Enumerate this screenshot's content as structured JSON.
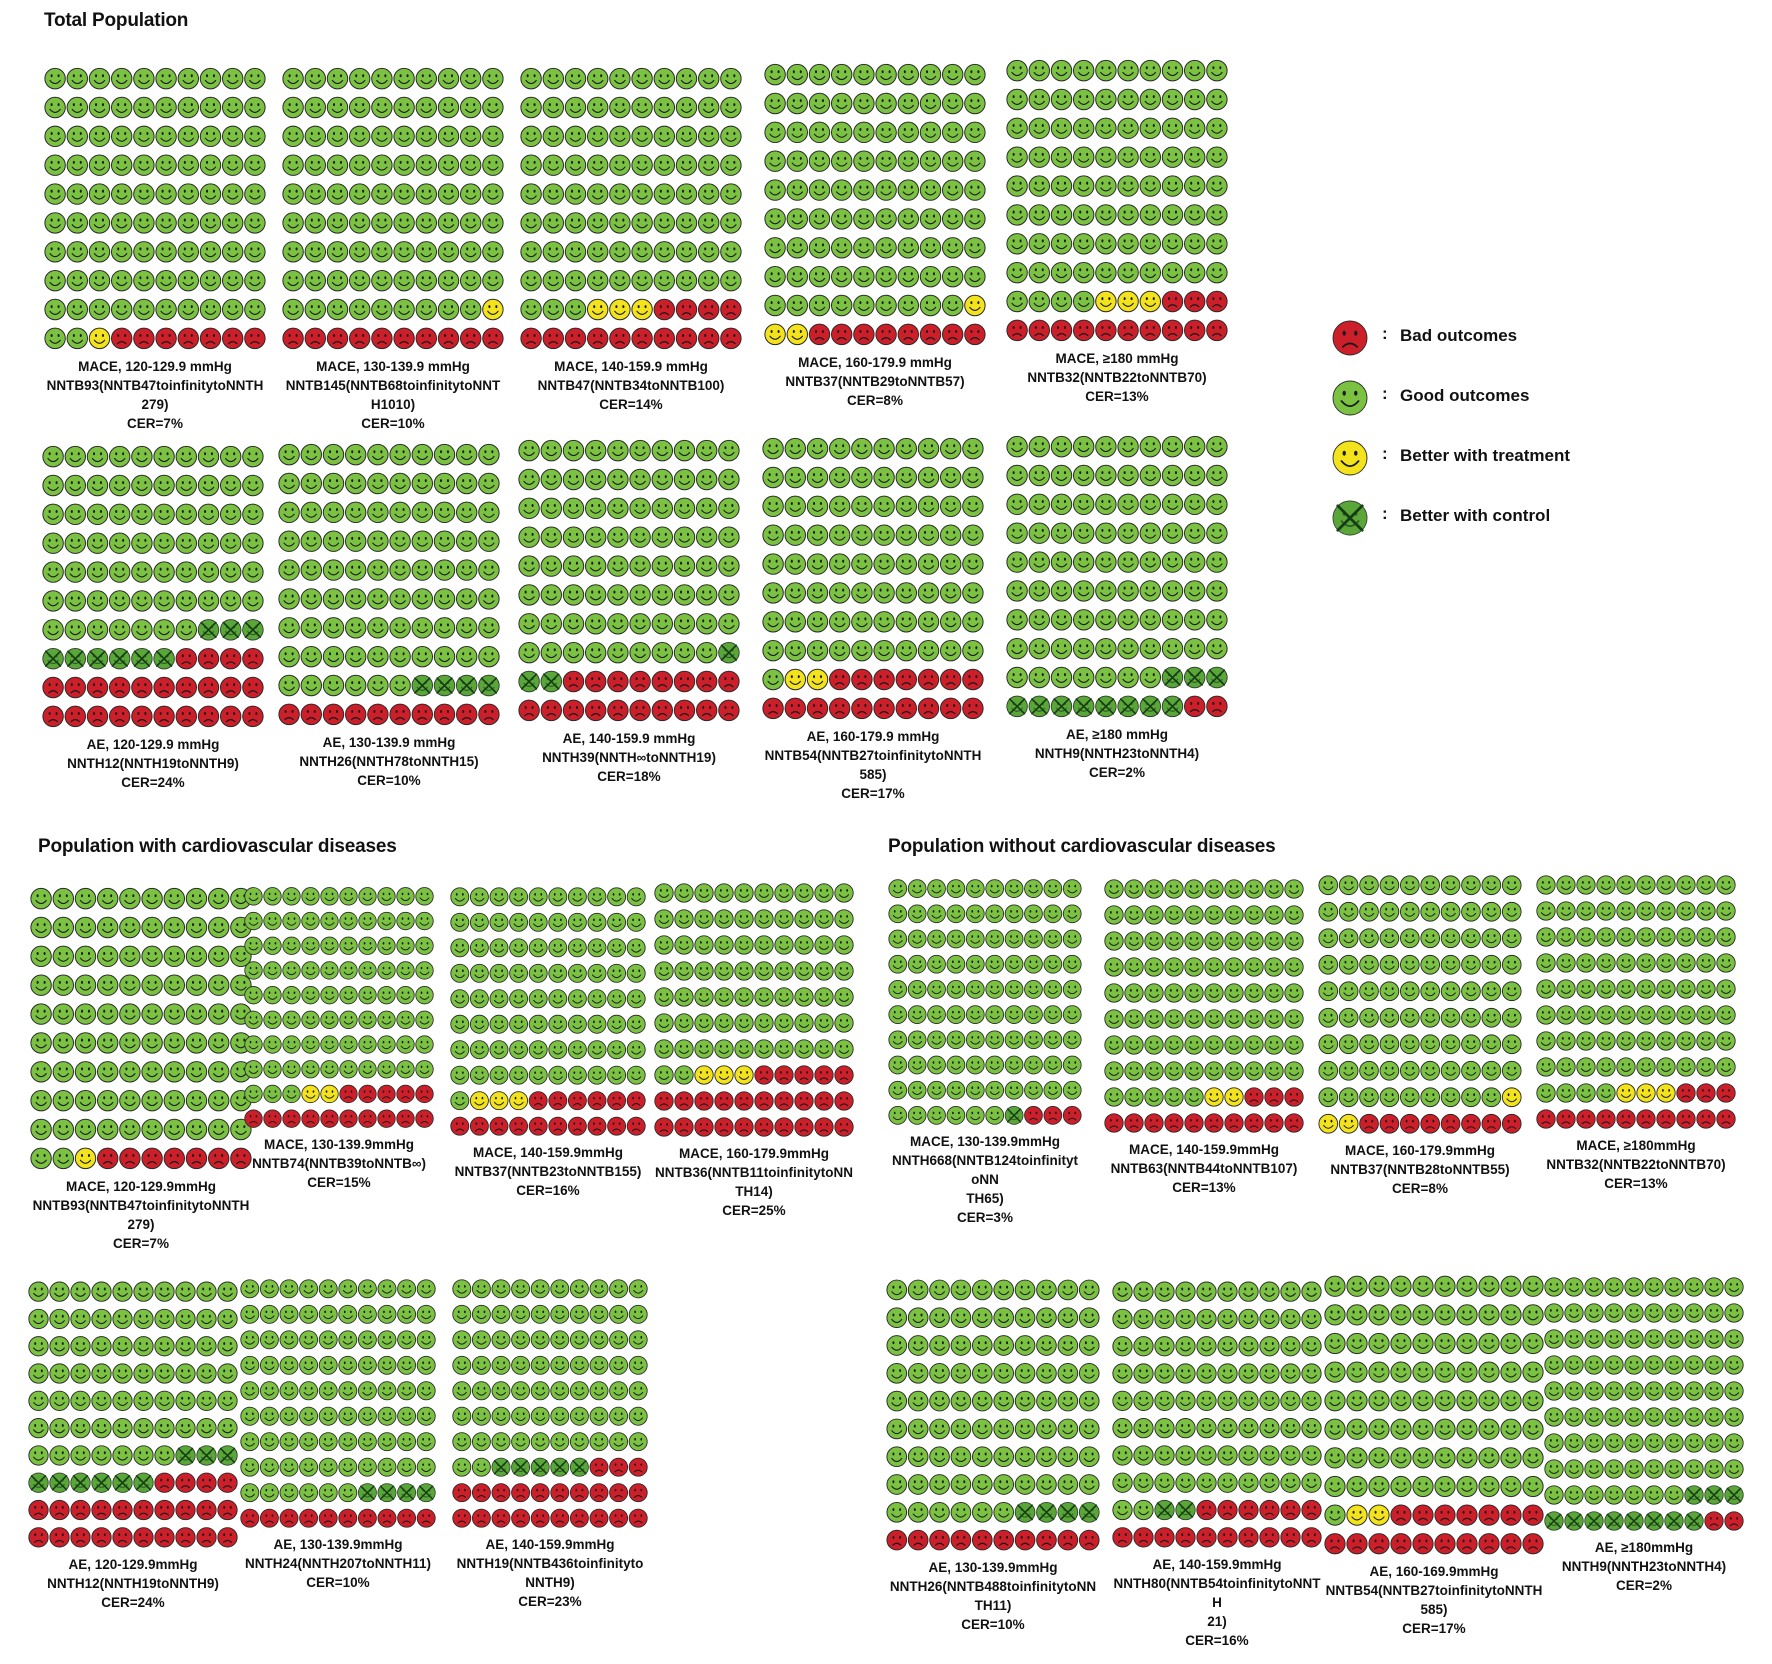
{
  "colors": {
    "bad": "#cc1f2a",
    "good": "#7cc242",
    "better_treatment": "#f3e31c",
    "better_control": "#3f8f32"
  },
  "sections": {
    "total": "Total Population",
    "with_cvd": "Population with cardiovascular diseases",
    "without_cvd": "Population without cardiovascular diseases"
  },
  "legend": [
    {
      "icon": "bad",
      "colon": ":",
      "label": "Bad outcomes"
    },
    {
      "icon": "good",
      "colon": ":",
      "label": "Good outcomes"
    },
    {
      "icon": "better_treatment",
      "colon": ":",
      "label": "Better with treatment"
    },
    {
      "icon": "better_control",
      "colon": ":",
      "label": "Better with control"
    }
  ],
  "chart_data": [
    {
      "type": "icon-array",
      "group": "Total Population",
      "caption": [
        "MACE, 120-129.9 mmHg",
        "NNTB93(NNTB47toinfinitytoNNTH",
        "279)",
        "CER=7%"
      ],
      "counts": {
        "good": 92,
        "better_treatment": 1,
        "better_control": 0,
        "bad": 7
      }
    },
    {
      "type": "icon-array",
      "group": "Total Population",
      "caption": [
        "MACE, 130-139.9 mmHg",
        "NNTB145(NNTB68toinfinitytoNNTH1010)",
        "CER=10%"
      ],
      "counts": {
        "good": 89,
        "better_treatment": 1,
        "better_control": 0,
        "bad": 10
      }
    },
    {
      "type": "icon-array",
      "group": "Total Population",
      "caption": [
        "MACE, 140-159.9 mmHg",
        "NNTB47(NNTB34toNNTB100)",
        "CER=14%"
      ],
      "counts": {
        "good": 83,
        "better_treatment": 3,
        "better_control": 0,
        "bad": 14
      }
    },
    {
      "type": "icon-array",
      "group": "Total Population",
      "caption": [
        "MACE, 160-179.9 mmHg",
        "NNTB37(NNTB29toNNTB57)",
        "CER=8%"
      ],
      "counts": {
        "good": 89,
        "better_treatment": 3,
        "better_control": 0,
        "bad": 8
      }
    },
    {
      "type": "icon-array",
      "group": "Total Population",
      "caption": [
        "MACE, ≥180 mmHg",
        "NNTB32(NNTB22toNNTB70)",
        "CER=13%"
      ],
      "counts": {
        "good": 84,
        "better_treatment": 3,
        "better_control": 0,
        "bad": 13
      }
    },
    {
      "type": "icon-array",
      "group": "Total Population",
      "caption": [
        "AE, 120-129.9 mmHg",
        "NNTH12(NNTH19toNNTH9)",
        "CER=24%"
      ],
      "counts": {
        "good": 67,
        "better_treatment": 0,
        "better_control": 9,
        "bad": 24
      }
    },
    {
      "type": "icon-array",
      "group": "Total Population",
      "caption": [
        "AE, 130-139.9 mmHg",
        "NNTH26(NNTH78toNNTH15)",
        "CER=10%"
      ],
      "counts": {
        "good": 86,
        "better_treatment": 0,
        "better_control": 4,
        "bad": 10
      }
    },
    {
      "type": "icon-array",
      "group": "Total Population",
      "caption": [
        "AE, 140-159.9 mmHg",
        "NNTH39(NNTH∞toNNTH19)",
        "CER=18%"
      ],
      "counts": {
        "good": 79,
        "better_treatment": 0,
        "better_control": 3,
        "bad": 18
      }
    },
    {
      "type": "icon-array",
      "group": "Total Population",
      "caption": [
        "AE, 160-179.9 mmHg",
        "NNTB54(NNTB27toinfinitytoNNTH",
        "585)",
        "CER=17%"
      ],
      "counts": {
        "good": 81,
        "better_treatment": 2,
        "better_control": 0,
        "bad": 17
      }
    },
    {
      "type": "icon-array",
      "group": "Total Population",
      "caption": [
        "AE, ≥180 mmHg",
        "NNTH9(NNTH23toNNTH4)",
        "CER=2%"
      ],
      "counts": {
        "good": 87,
        "better_treatment": 0,
        "better_control": 11,
        "bad": 2
      }
    },
    {
      "type": "icon-array",
      "group": "Population with cardiovascular diseases",
      "caption": [
        "MACE, 120-129.9mmHg",
        "NNTB93(NNTB47toinfinitytoNNTH",
        "279)",
        "CER=7%"
      ],
      "counts": {
        "good": 92,
        "better_treatment": 1,
        "better_control": 0,
        "bad": 7
      }
    },
    {
      "type": "icon-array",
      "group": "Population with cardiovascular diseases",
      "caption": [
        "MACE, 130-139.9mmHg",
        "NNTB74(NNTB39toNNTB∞)",
        "CER=15%"
      ],
      "counts": {
        "good": 83,
        "better_treatment": 2,
        "better_control": 0,
        "bad": 15
      }
    },
    {
      "type": "icon-array",
      "group": "Population with cardiovascular diseases",
      "caption": [
        "MACE, 140-159.9mmHg",
        "NNTB37(NNTB23toNNTB155)",
        "CER=16%"
      ],
      "counts": {
        "good": 81,
        "better_treatment": 3,
        "better_control": 0,
        "bad": 16
      }
    },
    {
      "type": "icon-array",
      "group": "Population with cardiovascular diseases",
      "caption": [
        "MACE, 160-179.9mmHg",
        "NNTB36(NNTB11toinfinitytoNNTH14)",
        "CER=25%"
      ],
      "counts": {
        "good": 72,
        "better_treatment": 3,
        "better_control": 0,
        "bad": 25
      }
    },
    {
      "type": "icon-array",
      "group": "Population with cardiovascular diseases",
      "caption": [
        "AE, 120-129.9mmHg",
        "NNTH12(NNTH19toNNTH9)",
        "CER=24%"
      ],
      "counts": {
        "good": 67,
        "better_treatment": 0,
        "better_control": 9,
        "bad": 24
      }
    },
    {
      "type": "icon-array",
      "group": "Population with cardiovascular diseases",
      "caption": [
        "AE, 130-139.9mmHg",
        "NNTH24(NNTH207toNNTH11)",
        "CER=10%"
      ],
      "counts": {
        "good": 86,
        "better_treatment": 0,
        "better_control": 4,
        "bad": 10
      }
    },
    {
      "type": "icon-array",
      "group": "Population with cardiovascular diseases",
      "caption": [
        "AE, 140-159.9mmHg",
        "NNTH19(NNTB436toinfinitytoNNTH9)",
        "CER=23%"
      ],
      "counts": {
        "good": 72,
        "better_treatment": 0,
        "better_control": 5,
        "bad": 23
      }
    },
    {
      "type": "icon-array",
      "group": "Population without cardiovascular diseases",
      "caption": [
        "MACE, 130-139.9mmHg",
        "NNTH668(NNTB124toinfinitytoNN",
        "TH65)",
        "CER=3%"
      ],
      "counts": {
        "good": 96,
        "better_treatment": 0,
        "better_control": 1,
        "bad": 3
      }
    },
    {
      "type": "icon-array",
      "group": "Population without cardiovascular diseases",
      "caption": [
        "MACE, 140-159.9mmHg",
        "NNTB63(NNTB44toNNTB107)",
        "CER=13%"
      ],
      "counts": {
        "good": 85,
        "better_treatment": 2,
        "better_control": 0,
        "bad": 13
      }
    },
    {
      "type": "icon-array",
      "group": "Population without cardiovascular diseases",
      "caption": [
        "MACE, 160-179.9mmHg",
        "NNTB37(NNTB28toNNTB55)",
        "CER=8%"
      ],
      "counts": {
        "good": 89,
        "better_treatment": 3,
        "better_control": 0,
        "bad": 8
      }
    },
    {
      "type": "icon-array",
      "group": "Population without cardiovascular diseases",
      "caption": [
        "MACE, ≥180mmHg",
        "NNTB32(NNTB22toNNTB70)",
        "CER=13%"
      ],
      "counts": {
        "good": 84,
        "better_treatment": 3,
        "better_control": 0,
        "bad": 13
      }
    },
    {
      "type": "icon-array",
      "group": "Population without cardiovascular diseases",
      "caption": [
        "AE, 130-139.9mmHg",
        "NNTH26(NNTB488toinfinitytoNNTH11)",
        "CER=10%"
      ],
      "counts": {
        "good": 86,
        "better_treatment": 0,
        "better_control": 4,
        "bad": 10
      }
    },
    {
      "type": "icon-array",
      "group": "Population without cardiovascular diseases",
      "caption": [
        "AE, 140-159.9mmHg",
        "NNTH80(NNTB54toinfinitytoNNTH",
        "21)",
        "CER=16%"
      ],
      "counts": {
        "good": 82,
        "better_treatment": 0,
        "better_control": 2,
        "bad": 16
      }
    },
    {
      "type": "icon-array",
      "group": "Population without cardiovascular diseases",
      "caption": [
        "AE, 160-169.9mmHg",
        "NNTB54(NNTB27toinfinitytoNNTH",
        "585)",
        "CER=17%"
      ],
      "counts": {
        "good": 81,
        "better_treatment": 2,
        "better_control": 0,
        "bad": 17
      }
    },
    {
      "type": "icon-array",
      "group": "Population without cardiovascular diseases",
      "caption": [
        "AE, ≥180mmHg",
        "NNTH9(NNTH23toNNTH4)",
        "CER=2%"
      ],
      "counts": {
        "good": 87,
        "better_treatment": 0,
        "better_control": 11,
        "bad": 2
      }
    }
  ]
}
